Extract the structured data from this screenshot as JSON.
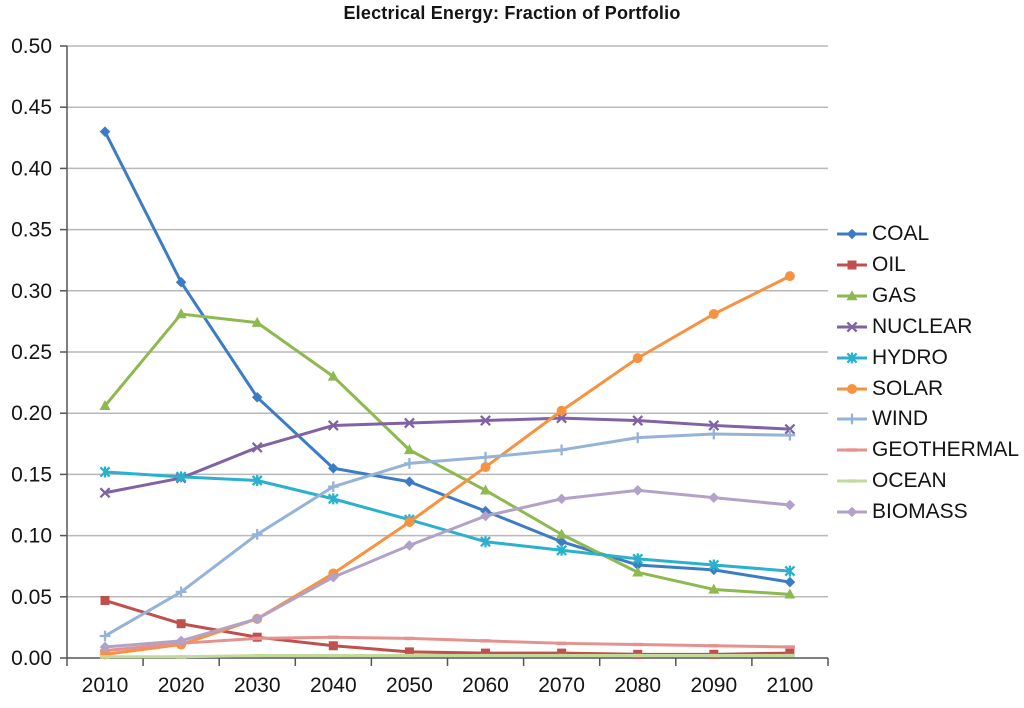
{
  "chart_data": {
    "type": "line",
    "title": "Electrical Energy: Fraction of Portfolio",
    "x": [
      2010,
      2020,
      2030,
      2040,
      2050,
      2060,
      2070,
      2080,
      2090,
      2100
    ],
    "xlabel": "",
    "ylabel": "",
    "ylim": [
      0,
      0.5
    ],
    "ytick_step": 0.05,
    "ytick_labels": [
      "0.00",
      "0.05",
      "0.10",
      "0.15",
      "0.20",
      "0.25",
      "0.30",
      "0.35",
      "0.40",
      "0.45",
      "0.50"
    ],
    "grid": true,
    "legend_position": "right",
    "axis_color": "#555555",
    "gridline_color": "#b9b9b9",
    "text_color": "#141414",
    "series": [
      {
        "name": "COAL",
        "color": "#3c7cc5",
        "marker": "diamond",
        "values": [
          0.43,
          0.307,
          0.213,
          0.155,
          0.144,
          0.12,
          0.095,
          0.076,
          0.072,
          0.062
        ]
      },
      {
        "name": "OIL",
        "color": "#c0504d",
        "marker": "square",
        "values": [
          0.047,
          0.028,
          0.017,
          0.01,
          0.005,
          0.004,
          0.004,
          0.003,
          0.003,
          0.004
        ]
      },
      {
        "name": "GAS",
        "color": "#8db94e",
        "marker": "triangle",
        "values": [
          0.206,
          0.281,
          0.274,
          0.23,
          0.17,
          0.137,
          0.101,
          0.07,
          0.056,
          0.052
        ]
      },
      {
        "name": "NUCLEAR",
        "color": "#7f63a2",
        "marker": "x",
        "values": [
          0.135,
          0.147,
          0.172,
          0.19,
          0.192,
          0.194,
          0.196,
          0.194,
          0.19,
          0.187
        ]
      },
      {
        "name": "HYDRO",
        "color": "#2bb0cd",
        "marker": "star",
        "values": [
          0.152,
          0.148,
          0.145,
          0.13,
          0.113,
          0.095,
          0.088,
          0.081,
          0.076,
          0.071
        ]
      },
      {
        "name": "SOLAR",
        "color": "#f79240",
        "marker": "circle",
        "values": [
          0.003,
          0.011,
          0.032,
          0.069,
          0.111,
          0.156,
          0.202,
          0.245,
          0.281,
          0.312
        ]
      },
      {
        "name": "WIND",
        "color": "#95b3d7",
        "marker": "plus",
        "values": [
          0.018,
          0.054,
          0.101,
          0.14,
          0.159,
          0.164,
          0.17,
          0.18,
          0.183,
          0.182
        ]
      },
      {
        "name": "GEOTHERMAL",
        "color": "#e5928f",
        "marker": "dash",
        "values": [
          0.006,
          0.012,
          0.016,
          0.017,
          0.016,
          0.014,
          0.012,
          0.011,
          0.01,
          0.009
        ]
      },
      {
        "name": "OCEAN",
        "color": "#c2db9c",
        "marker": "dash",
        "values": [
          0.001,
          0.001,
          0.002,
          0.002,
          0.002,
          0.002,
          0.002,
          0.002,
          0.002,
          0.002
        ]
      },
      {
        "name": "BIOMASS",
        "color": "#b2a2c7",
        "marker": "diamond",
        "values": [
          0.009,
          0.014,
          0.032,
          0.066,
          0.092,
          0.116,
          0.13,
          0.137,
          0.131,
          0.125
        ]
      }
    ]
  }
}
